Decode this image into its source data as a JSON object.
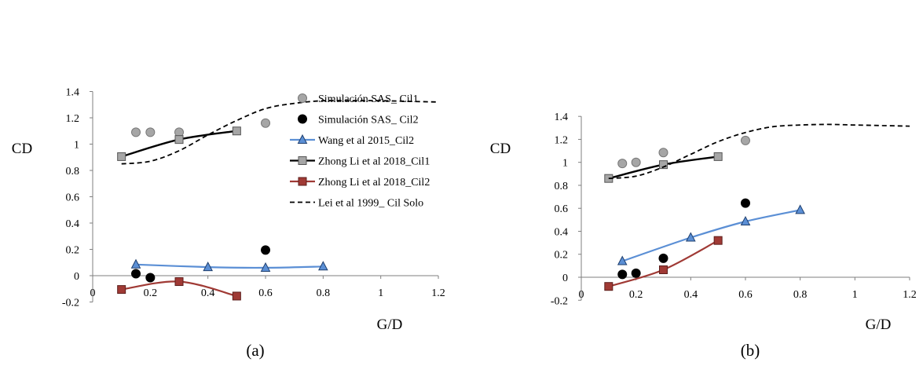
{
  "chart_data": [
    {
      "type": "scatter",
      "panel": "(a)",
      "ylabel": "CD",
      "xlabel": "G/D",
      "xlim": [
        0,
        1.2
      ],
      "ylim": [
        -0.2,
        1.4
      ],
      "xticks": [
        "0",
        "0.2",
        "0.4",
        "0.6",
        "0.8",
        "1",
        "1.2"
      ],
      "yticks": [
        "-0.2",
        "0",
        "0.2",
        "0.4",
        "0.6",
        "0.8",
        "1",
        "1.2",
        "1.4"
      ],
      "legend_position": "right",
      "series": [
        {
          "name": "Simulación SAS_ Cil1",
          "style": "marker",
          "marker": "circle",
          "color": "#a6a6a6",
          "x": [
            0.15,
            0.2,
            0.3,
            0.6
          ],
          "y": [
            1.09,
            1.09,
            1.09,
            1.16
          ]
        },
        {
          "name": "Simulación SAS_ Cil2",
          "style": "marker",
          "marker": "circle",
          "color": "#000000",
          "x": [
            0.15,
            0.2,
            0.6
          ],
          "y": [
            0.015,
            -0.015,
            0.195
          ]
        },
        {
          "name": "Wang et al 2015_Cil2",
          "style": "line+marker",
          "marker": "triangle",
          "color": "#5b8fd5",
          "x": [
            0.15,
            0.4,
            0.6,
            0.8
          ],
          "y": [
            0.085,
            0.065,
            0.06,
            0.07
          ]
        },
        {
          "name": "Zhong Li et al 2018_Cil1",
          "style": "line+marker",
          "marker": "square",
          "color": "#000000",
          "x": [
            0.1,
            0.3,
            0.5
          ],
          "y": [
            0.905,
            1.035,
            1.1
          ]
        },
        {
          "name": "Zhong Li et al 2018_Cil2",
          "style": "line+marker",
          "marker": "square",
          "color": "#a03a35",
          "x": [
            0.1,
            0.3,
            0.5
          ],
          "y": [
            -0.105,
            -0.045,
            -0.155
          ]
        },
        {
          "name": "Lei et al 1999_ Cil Solo",
          "style": "dashed",
          "color": "#000000",
          "x": [
            0.1,
            0.2,
            0.3,
            0.4,
            0.5,
            0.6,
            0.7,
            0.8,
            0.9,
            1.0,
            1.1,
            1.2
          ],
          "y": [
            0.85,
            0.87,
            0.95,
            1.07,
            1.18,
            1.27,
            1.31,
            1.33,
            1.33,
            1.33,
            1.325,
            1.32
          ]
        }
      ]
    },
    {
      "type": "scatter",
      "panel": "(b)",
      "ylabel": "CD",
      "xlabel": "G/D",
      "xlim": [
        0,
        1.2
      ],
      "ylim": [
        -0.2,
        1.4
      ],
      "xticks": [
        "0",
        "0.2",
        "0.4",
        "0.6",
        "0.8",
        "1",
        "1.2"
      ],
      "yticks": [
        "-0.2",
        "0",
        "0.2",
        "0.4",
        "0.6",
        "0.8",
        "1",
        "1.2",
        "1.4"
      ],
      "series": [
        {
          "name": "Simulación SAS_ Cil1",
          "style": "marker",
          "marker": "circle",
          "color": "#a6a6a6",
          "x": [
            0.15,
            0.2,
            0.3,
            0.6
          ],
          "y": [
            0.99,
            1.0,
            1.085,
            1.19
          ]
        },
        {
          "name": "Simulación SAS_ Cil2",
          "style": "marker",
          "marker": "circle",
          "color": "#000000",
          "x": [
            0.15,
            0.2,
            0.3,
            0.6
          ],
          "y": [
            0.025,
            0.035,
            0.165,
            0.645
          ]
        },
        {
          "name": "Wang et al 2015_Cil2",
          "style": "line+marker",
          "marker": "triangle",
          "color": "#5b8fd5",
          "x": [
            0.15,
            0.4,
            0.6,
            0.8
          ],
          "y": [
            0.14,
            0.345,
            0.485,
            0.585
          ]
        },
        {
          "name": "Zhong Li et al 2018_Cil1",
          "style": "line+marker",
          "marker": "square",
          "color": "#000000",
          "x": [
            0.1,
            0.3,
            0.5
          ],
          "y": [
            0.86,
            0.98,
            1.05
          ]
        },
        {
          "name": "Zhong Li et al 2018_Cil2",
          "style": "line+marker",
          "marker": "square",
          "color": "#a03a35",
          "x": [
            0.1,
            0.3,
            0.5
          ],
          "y": [
            -0.08,
            0.065,
            0.32
          ]
        },
        {
          "name": "Lei et al 1999_ Cil Solo",
          "style": "dashed",
          "color": "#000000",
          "x": [
            0.1,
            0.2,
            0.3,
            0.4,
            0.5,
            0.6,
            0.7,
            0.8,
            0.9,
            1.0,
            1.1,
            1.2
          ],
          "y": [
            0.86,
            0.88,
            0.96,
            1.07,
            1.18,
            1.26,
            1.31,
            1.325,
            1.33,
            1.325,
            1.32,
            1.315
          ]
        }
      ]
    }
  ]
}
